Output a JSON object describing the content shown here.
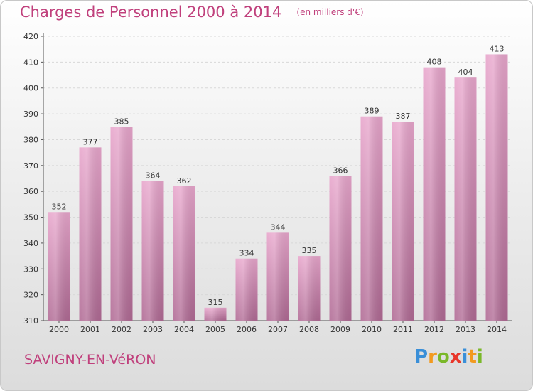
{
  "title": "Charges de Personnel 2000 à 2014",
  "subtitle": "(en milliers d'€)",
  "town": "SAVIGNY-EN-VéRON",
  "logo": {
    "letters": [
      {
        "ch": "P",
        "color": "#3a8fd8"
      },
      {
        "ch": "r",
        "color": "#f29a1f"
      },
      {
        "ch": "o",
        "color": "#7ab829"
      },
      {
        "ch": "x",
        "color": "#e8362a"
      },
      {
        "ch": "i",
        "color": "#3a8fd8"
      },
      {
        "ch": "t",
        "color": "#f29a1f"
      },
      {
        "ch": "i",
        "color": "#7ab829"
      }
    ]
  },
  "colors": {
    "title": "#c0407c",
    "bar_top": "#e8a6cc",
    "bar_bottom": "#b06a94",
    "grid": "#d8d8d8",
    "axis": "#555555"
  },
  "chart_data": {
    "type": "bar",
    "categories": [
      "2000",
      "2001",
      "2002",
      "2003",
      "2004",
      "2005",
      "2006",
      "2007",
      "2008",
      "2009",
      "2010",
      "2011",
      "2012",
      "2013",
      "2014"
    ],
    "values": [
      352,
      377,
      385,
      364,
      362,
      315,
      334,
      344,
      335,
      366,
      389,
      387,
      408,
      404,
      413
    ],
    "yticks": [
      310,
      320,
      330,
      340,
      350,
      360,
      370,
      380,
      390,
      400,
      410,
      420
    ],
    "ylim": [
      310,
      420
    ],
    "grid": true,
    "data_labels": true
  }
}
